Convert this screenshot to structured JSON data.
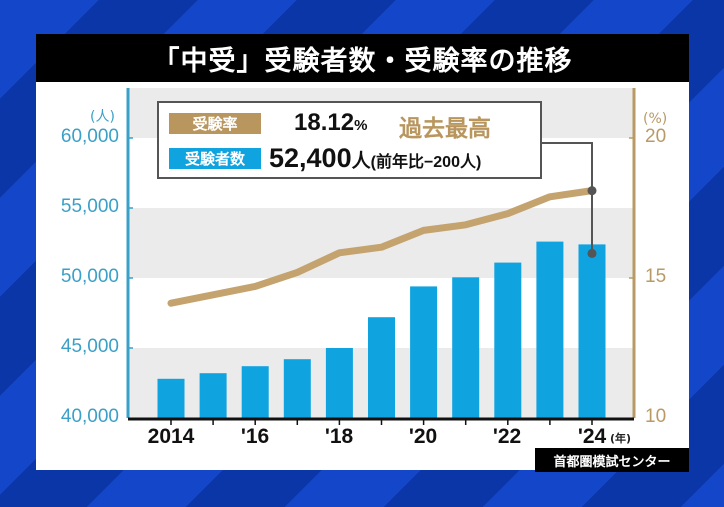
{
  "title": "「中受」受験者数・受験率の推移",
  "source": "首都圏模試センター",
  "callout": {
    "rate_label": "受験率",
    "rate_value": "18.12",
    "rate_unit": "%",
    "rate_highlight": "過去最高",
    "count_label": "受験者数",
    "count_value": "52,400",
    "count_unit": "人",
    "count_diff": "(前年比−200人)"
  },
  "axes": {
    "left_unit": "(人)",
    "right_unit": "(%)",
    "left_ticks": [
      "60,000",
      "55,000",
      "50,000",
      "45,000",
      "40,000"
    ],
    "right_ticks": [
      "20",
      "15",
      "10"
    ],
    "x_ticks": [
      "2014",
      "'16",
      "'18",
      "'20",
      "'22",
      "'24"
    ],
    "x_unit": "(年)"
  },
  "colors": {
    "bar": "#0fa3e0",
    "line": "#c4a36e",
    "left_axis": "#3aa0c8",
    "right_axis": "#b89a66",
    "band": "#ebebeb"
  },
  "chart_data": {
    "type": "bar+line",
    "title": "「中受」受験者数・受験率の推移",
    "categories": [
      "2014",
      "2015",
      "2016",
      "2017",
      "2018",
      "2019",
      "2020",
      "2021",
      "2022",
      "2023",
      "2024"
    ],
    "series": [
      {
        "name": "受験者数",
        "type": "bar",
        "axis": "left",
        "unit": "人",
        "values": [
          42800,
          43200,
          43700,
          44200,
          45000,
          47200,
          49400,
          50050,
          51100,
          52600,
          52400
        ]
      },
      {
        "name": "受験率",
        "type": "line",
        "axis": "right",
        "unit": "%",
        "values": [
          14.1,
          14.4,
          14.7,
          15.2,
          15.9,
          16.1,
          16.7,
          16.9,
          17.3,
          17.9,
          18.12
        ]
      }
    ],
    "xlabel": "(年)",
    "ylabel_left": "(人)",
    "ylabel_right": "(%)",
    "ylim_left": [
      40000,
      60000
    ],
    "ylim_right": [
      10,
      20
    ],
    "annotation": "受験率 18.12% 過去最高 / 受験者数 52,400人 (前年比−200人)",
    "grid": "alternating horizontal bands"
  }
}
